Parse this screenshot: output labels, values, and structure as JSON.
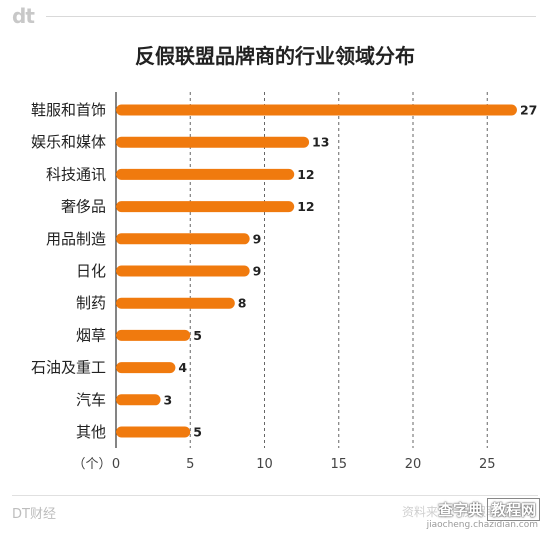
{
  "header": {
    "logo": "dt",
    "title": "反假联盟品牌商的行业领域分布"
  },
  "chart_data": {
    "type": "bar",
    "orientation": "horizontal",
    "title": "反假联盟品牌商的行业领域分布",
    "categories": [
      "鞋服和首饰",
      "娱乐和媒体",
      "科技通讯",
      "奢侈品",
      "用品制造",
      "日化",
      "制药",
      "烟草",
      "石油及重工",
      "汽车",
      "其他"
    ],
    "values": [
      27,
      13,
      12,
      12,
      9,
      9,
      8,
      5,
      4,
      3,
      5
    ],
    "xlabel": "（个）",
    "xlim": [
      0,
      28
    ],
    "xticks": [
      0,
      5,
      10,
      15,
      20,
      25
    ],
    "grid": "vertical-dashed",
    "bar_color": "#f07a0e",
    "data_labels": true
  },
  "footer": {
    "brand": "DT财经",
    "source": "资料来源：反假联盟官网",
    "watermark_chars": [
      "查字典",
      "教程网"
    ],
    "watermark_url": "jiaocheng.chazidian.com"
  }
}
